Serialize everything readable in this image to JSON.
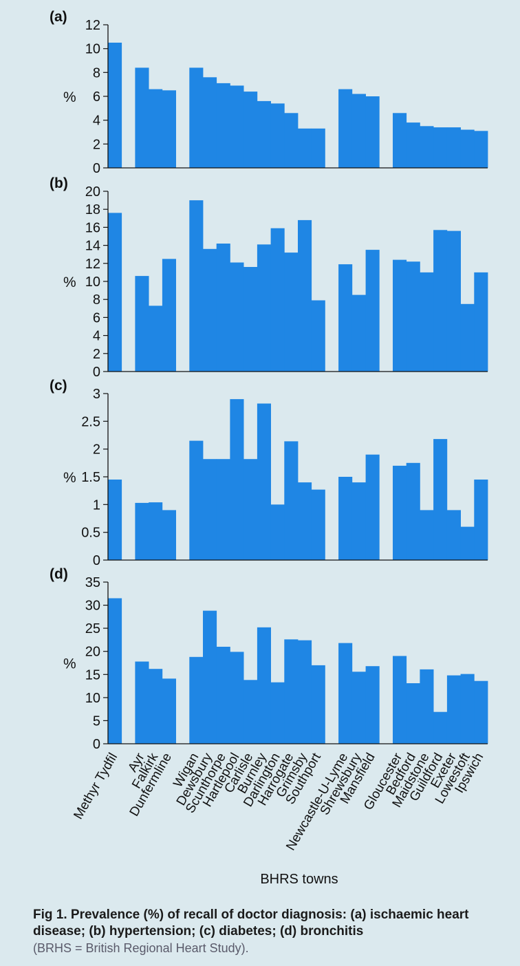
{
  "caption": {
    "title": "Fig 1. Prevalence (%) of recall of doctor diagnosis: (a) ischaemic heart disease; (b) hypertension; (c) diabetes; (d) bronchitis",
    "note": "(BRHS = British Regional Heart Study)."
  },
  "colors": {
    "bar": "#1f86e4",
    "background": "#dbe9ee",
    "axis": "#111111"
  },
  "chart_data": {
    "type": "bar",
    "xlabel": "BHRS towns",
    "categories": [
      "Methyr Tydfil",
      "",
      "Ayr",
      "Falkirk",
      "Dunfermline",
      "",
      "Wigan",
      "Dewsbury",
      "Scunthorpe",
      "Hartlepool",
      "Carlisle",
      "Burnley",
      "Darlington",
      "Harrogate",
      "Grimsby",
      "Southport",
      "",
      "Newcastle-U-Lyme",
      "Shrewsbury",
      "Mansfield",
      "",
      "Gloucester",
      "Bedford",
      "Maidstone",
      "Guildford",
      "Exeter",
      "Lowestoft",
      "Ipswich"
    ],
    "panels": [
      {
        "label": "(a)",
        "ylabel": "%",
        "ylim": [
          0,
          12
        ],
        "yticks": [
          "0",
          "2",
          "4",
          "6",
          "8",
          "10",
          "12"
        ],
        "values": [
          10.5,
          null,
          8.4,
          6.6,
          6.5,
          null,
          8.4,
          7.6,
          7.1,
          6.9,
          6.4,
          5.6,
          5.4,
          4.6,
          3.3,
          3.3,
          null,
          6.6,
          6.2,
          6.0,
          null,
          4.6,
          3.8,
          3.5,
          3.4,
          3.4,
          3.2,
          3.1
        ]
      },
      {
        "label": "(b)",
        "ylabel": "%",
        "ylim": [
          0,
          20
        ],
        "yticks": [
          "0",
          "2",
          "4",
          "6",
          "8",
          "10",
          "12",
          "14",
          "16",
          "18",
          "20"
        ],
        "values": [
          17.6,
          null,
          10.6,
          7.3,
          12.5,
          null,
          19.0,
          13.6,
          14.2,
          12.1,
          11.6,
          14.1,
          15.9,
          13.2,
          16.8,
          7.9,
          null,
          11.9,
          8.5,
          13.5,
          null,
          12.4,
          12.2,
          11.0,
          15.7,
          15.6,
          7.5,
          11.0
        ]
      },
      {
        "label": "(c)",
        "ylabel": "%",
        "ylim": [
          0,
          3
        ],
        "yticks": [
          "0",
          "0.5",
          "1",
          "1.5",
          "2",
          "2.5",
          "3"
        ],
        "values": [
          1.45,
          null,
          1.03,
          1.04,
          0.9,
          null,
          2.15,
          1.82,
          1.82,
          2.9,
          1.82,
          2.82,
          1.0,
          2.14,
          1.4,
          1.27,
          null,
          1.5,
          1.4,
          1.9,
          null,
          1.7,
          1.75,
          0.9,
          2.18,
          0.9,
          0.6,
          1.45
        ]
      },
      {
        "label": "(d)",
        "ylabel": "%",
        "ylim": [
          0,
          35
        ],
        "yticks": [
          "0",
          "5",
          "10",
          "15",
          "20",
          "25",
          "30",
          "35"
        ],
        "values": [
          31.5,
          null,
          17.8,
          16.2,
          14.1,
          null,
          18.8,
          28.8,
          21.0,
          19.9,
          13.8,
          25.2,
          13.3,
          22.6,
          22.4,
          17.0,
          null,
          21.8,
          15.6,
          16.8,
          null,
          19.0,
          13.1,
          16.1,
          6.9,
          14.8,
          15.1,
          13.6
        ]
      }
    ]
  }
}
